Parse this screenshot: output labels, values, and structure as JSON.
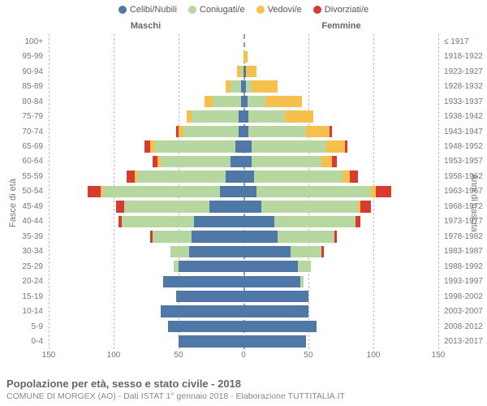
{
  "chart": {
    "type": "population-pyramid",
    "legend": [
      {
        "label": "Celibi/Nubili",
        "color": "#4f78a6"
      },
      {
        "label": "Coniugati/e",
        "color": "#b6d7a0"
      },
      {
        "label": "Vedovi/e",
        "color": "#f6c04d"
      },
      {
        "label": "Divorziati/e",
        "color": "#d73b2e"
      }
    ],
    "header_male": "Maschi",
    "header_female": "Femmine",
    "y_title_left": "Fasce di età",
    "y_title_right": "Anni di nascita",
    "x_max": 150,
    "x_ticks": [
      150,
      100,
      50,
      0,
      50,
      100,
      150
    ],
    "background_color": "#ffffff",
    "grid_color": "#bbbbbb",
    "colors": {
      "cel": "#4f78a6",
      "con": "#b6d7a0",
      "ved": "#f6c04d",
      "div": "#d73b2e"
    },
    "age_bands": [
      {
        "age": "100+",
        "birth": "≤ 1917",
        "m": {
          "cel": 0,
          "con": 0,
          "ved": 0,
          "div": 0
        },
        "f": {
          "cel": 0,
          "con": 0,
          "ved": 0,
          "div": 0
        }
      },
      {
        "age": "95-99",
        "birth": "1918-1922",
        "m": {
          "cel": 0,
          "con": 0,
          "ved": 0,
          "div": 0
        },
        "f": {
          "cel": 0,
          "con": 0,
          "ved": 3,
          "div": 0
        }
      },
      {
        "age": "90-94",
        "birth": "1923-1927",
        "m": {
          "cel": 0,
          "con": 2,
          "ved": 3,
          "div": 0
        },
        "f": {
          "cel": 2,
          "con": 0,
          "ved": 8,
          "div": 0
        }
      },
      {
        "age": "85-89",
        "birth": "1928-1932",
        "m": {
          "cel": 2,
          "con": 8,
          "ved": 4,
          "div": 0
        },
        "f": {
          "cel": 2,
          "con": 4,
          "ved": 20,
          "div": 0
        }
      },
      {
        "age": "80-84",
        "birth": "1933-1937",
        "m": {
          "cel": 2,
          "con": 22,
          "ved": 6,
          "div": 0
        },
        "f": {
          "cel": 3,
          "con": 14,
          "ved": 28,
          "div": 0
        }
      },
      {
        "age": "75-79",
        "birth": "1938-1942",
        "m": {
          "cel": 4,
          "con": 36,
          "ved": 4,
          "div": 0
        },
        "f": {
          "cel": 4,
          "con": 28,
          "ved": 22,
          "div": 0
        }
      },
      {
        "age": "70-74",
        "birth": "1943-1947",
        "m": {
          "cel": 4,
          "con": 42,
          "ved": 4,
          "div": 2
        },
        "f": {
          "cel": 4,
          "con": 44,
          "ved": 18,
          "div": 2
        }
      },
      {
        "age": "65-69",
        "birth": "1948-1952",
        "m": {
          "cel": 6,
          "con": 62,
          "ved": 4,
          "div": 4
        },
        "f": {
          "cel": 6,
          "con": 58,
          "ved": 14,
          "div": 2
        }
      },
      {
        "age": "60-64",
        "birth": "1953-1957",
        "m": {
          "cel": 10,
          "con": 54,
          "ved": 2,
          "div": 4
        },
        "f": {
          "cel": 6,
          "con": 54,
          "ved": 8,
          "div": 4
        }
      },
      {
        "age": "55-59",
        "birth": "1958-1962",
        "m": {
          "cel": 14,
          "con": 68,
          "ved": 2,
          "div": 6
        },
        "f": {
          "cel": 8,
          "con": 68,
          "ved": 6,
          "div": 6
        }
      },
      {
        "age": "50-54",
        "birth": "1963-1967",
        "m": {
          "cel": 18,
          "con": 90,
          "ved": 2,
          "div": 10
        },
        "f": {
          "cel": 10,
          "con": 88,
          "ved": 4,
          "div": 12
        }
      },
      {
        "age": "45-49",
        "birth": "1968-1972",
        "m": {
          "cel": 26,
          "con": 66,
          "ved": 0,
          "div": 6
        },
        "f": {
          "cel": 14,
          "con": 74,
          "ved": 2,
          "div": 8
        }
      },
      {
        "age": "40-44",
        "birth": "1973-1977",
        "m": {
          "cel": 38,
          "con": 56,
          "ved": 0,
          "div": 2
        },
        "f": {
          "cel": 24,
          "con": 62,
          "ved": 0,
          "div": 4
        }
      },
      {
        "age": "35-39",
        "birth": "1978-1982",
        "m": {
          "cel": 40,
          "con": 30,
          "ved": 0,
          "div": 2
        },
        "f": {
          "cel": 26,
          "con": 44,
          "ved": 0,
          "div": 2
        }
      },
      {
        "age": "30-34",
        "birth": "1983-1987",
        "m": {
          "cel": 42,
          "con": 14,
          "ved": 0,
          "div": 0
        },
        "f": {
          "cel": 36,
          "con": 24,
          "ved": 0,
          "div": 2
        }
      },
      {
        "age": "25-29",
        "birth": "1988-1992",
        "m": {
          "cel": 50,
          "con": 4,
          "ved": 0,
          "div": 0
        },
        "f": {
          "cel": 42,
          "con": 10,
          "ved": 0,
          "div": 0
        }
      },
      {
        "age": "20-24",
        "birth": "1993-1997",
        "m": {
          "cel": 62,
          "con": 0,
          "ved": 0,
          "div": 0
        },
        "f": {
          "cel": 44,
          "con": 2,
          "ved": 0,
          "div": 0
        }
      },
      {
        "age": "15-19",
        "birth": "1998-2002",
        "m": {
          "cel": 52,
          "con": 0,
          "ved": 0,
          "div": 0
        },
        "f": {
          "cel": 50,
          "con": 0,
          "ved": 0,
          "div": 0
        }
      },
      {
        "age": "10-14",
        "birth": "2003-2007",
        "m": {
          "cel": 64,
          "con": 0,
          "ved": 0,
          "div": 0
        },
        "f": {
          "cel": 50,
          "con": 0,
          "ved": 0,
          "div": 0
        }
      },
      {
        "age": "5-9",
        "birth": "2008-2012",
        "m": {
          "cel": 58,
          "con": 0,
          "ved": 0,
          "div": 0
        },
        "f": {
          "cel": 56,
          "con": 0,
          "ved": 0,
          "div": 0
        }
      },
      {
        "age": "0-4",
        "birth": "2013-2017",
        "m": {
          "cel": 50,
          "con": 0,
          "ved": 0,
          "div": 0
        },
        "f": {
          "cel": 48,
          "con": 0,
          "ved": 0,
          "div": 0
        }
      }
    ]
  },
  "footer": {
    "title": "Popolazione per età, sesso e stato civile - 2018",
    "subtitle": "COMUNE DI MORGEX (AO) - Dati ISTAT 1° gennaio 2018 - Elaborazione TUTTITALIA.IT"
  }
}
